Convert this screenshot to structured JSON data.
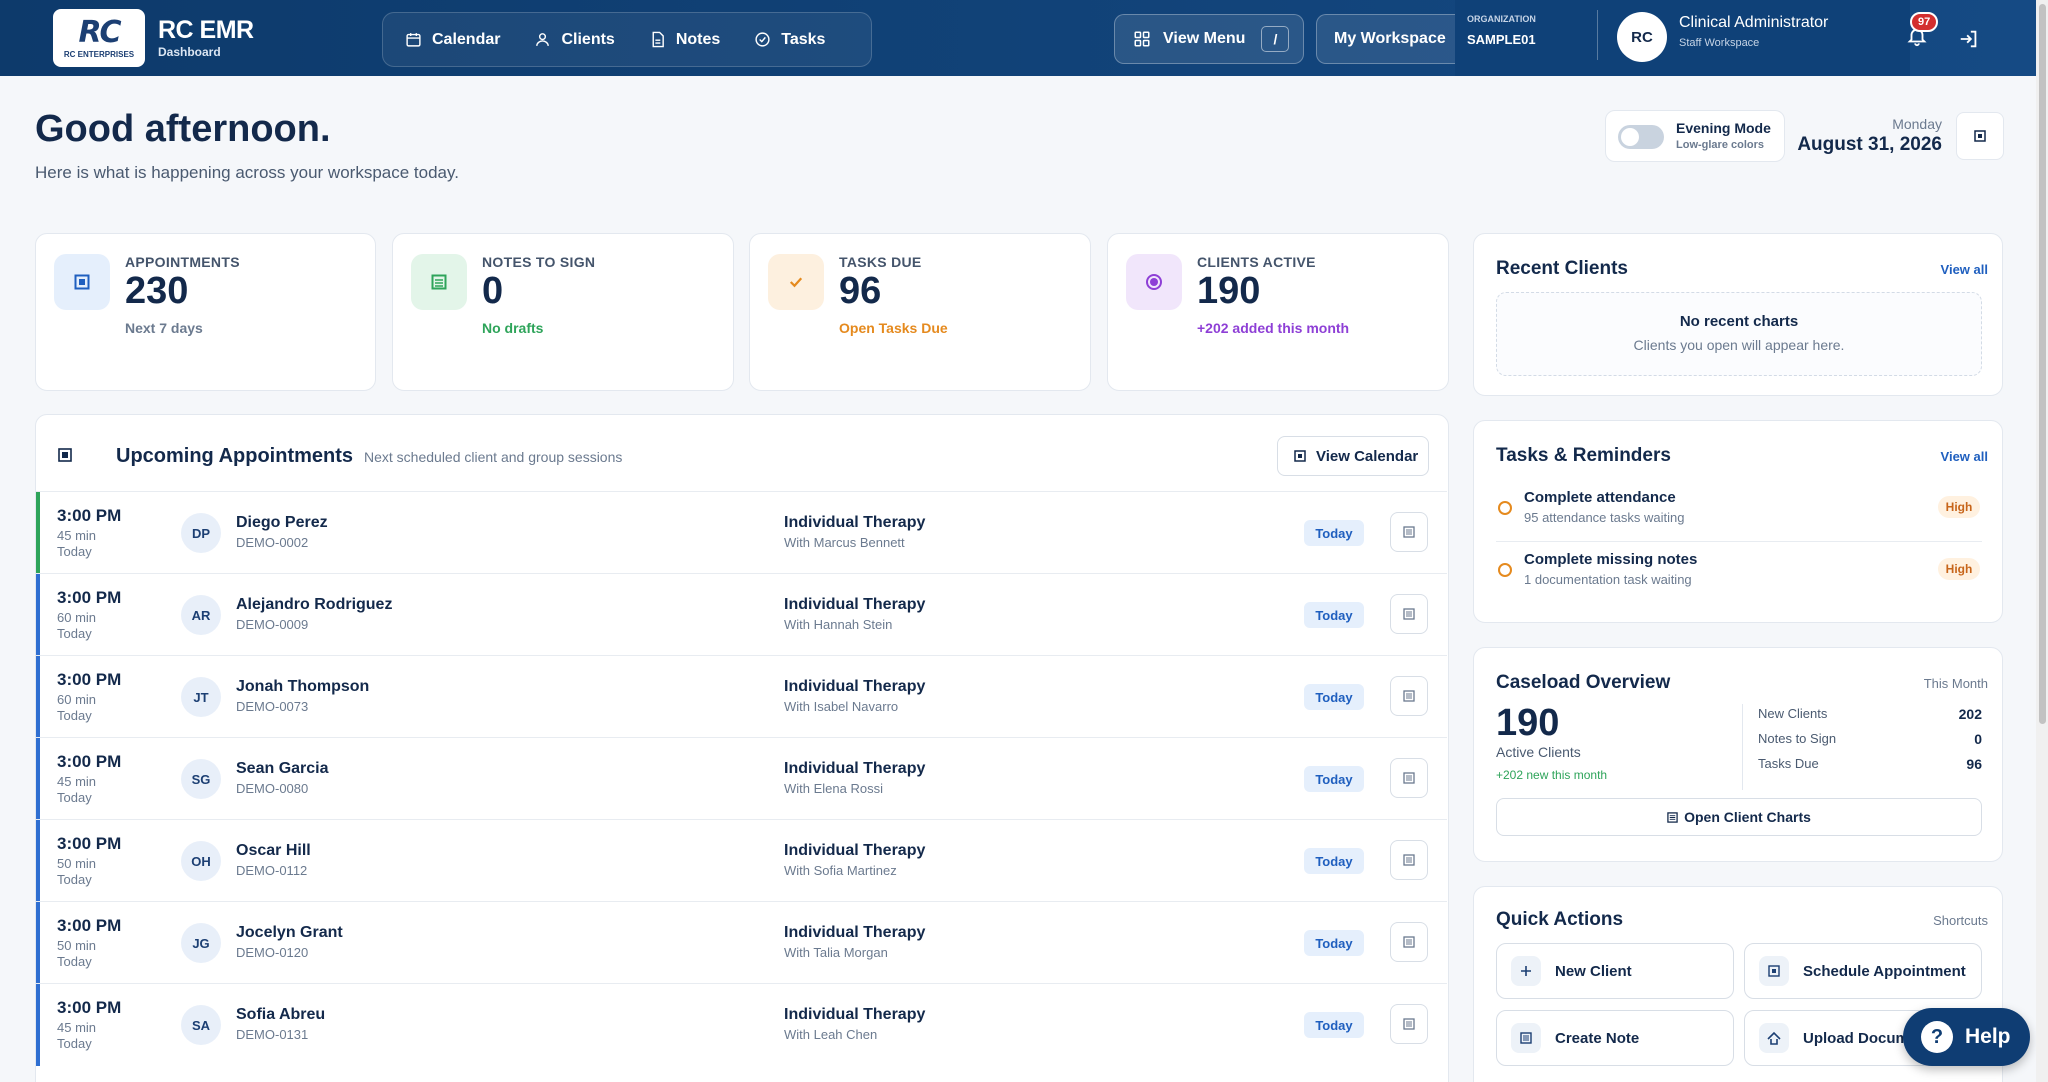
{
  "app": {
    "name": "RC EMR",
    "section": "Dashboard",
    "logo_text": "RC",
    "logo_sub": "RC ENTERPRISES"
  },
  "nav": [
    {
      "label": "Calendar",
      "icon": "calendar-icon"
    },
    {
      "label": "Clients",
      "icon": "user-icon"
    },
    {
      "label": "Notes",
      "icon": "document-icon"
    },
    {
      "label": "Tasks",
      "icon": "check-circle-icon"
    }
  ],
  "header": {
    "view_menu": "View Menu",
    "view_menu_shortcut": "/",
    "workspace": "My Workspace",
    "org_label": "ORGANIZATION",
    "org_value": "SAMPLE01",
    "avatar": "RC",
    "user_name": "Clinical Administrator",
    "user_role": "Staff Workspace",
    "notifications": "97"
  },
  "greeting": {
    "title": "Good afternoon.",
    "subtitle": "Here is what is happening across your workspace today."
  },
  "evening_mode": {
    "title": "Evening Mode",
    "subtitle": "Low-glare colors",
    "enabled": false
  },
  "date": {
    "day": "Monday",
    "full": "August 31, 2026"
  },
  "stats": [
    {
      "label": "APPOINTMENTS",
      "value": "230",
      "sub": "Next 7 days",
      "color": "#1f5fbf",
      "sub_color": "#6b7a8f",
      "bg": "#e5effc"
    },
    {
      "label": "NOTES TO SIGN",
      "value": "0",
      "sub": "No drafts",
      "color": "#2ea45a",
      "sub_color": "#2ea45a",
      "bg": "#e3f5e9"
    },
    {
      "label": "TASKS DUE",
      "value": "96",
      "sub": "Open Tasks Due",
      "color": "#e58a1e",
      "sub_color": "#e58a1e",
      "bg": "#fdf0df"
    },
    {
      "label": "CLIENTS ACTIVE",
      "value": "190",
      "sub": "+202 added this month",
      "color": "#8e3fd6",
      "sub_color": "#8e3fd6",
      "bg": "#f1e6fb"
    }
  ],
  "appointments": {
    "title": "Upcoming Appointments",
    "subtitle": "Next scheduled client and group sessions",
    "view_calendar": "View Calendar",
    "rows": [
      {
        "time": "3:00 PM",
        "duration": "45 min",
        "when": "Today",
        "initials": "DP",
        "name": "Diego Perez",
        "id": "DEMO-0002",
        "service": "Individual Therapy",
        "with": "With Marcus Bennett",
        "badge": "Today"
      },
      {
        "time": "3:00 PM",
        "duration": "60 min",
        "when": "Today",
        "initials": "AR",
        "name": "Alejandro Rodriguez",
        "id": "DEMO-0009",
        "service": "Individual Therapy",
        "with": "With Hannah Stein",
        "badge": "Today"
      },
      {
        "time": "3:00 PM",
        "duration": "60 min",
        "when": "Today",
        "initials": "JT",
        "name": "Jonah Thompson",
        "id": "DEMO-0073",
        "service": "Individual Therapy",
        "with": "With Isabel Navarro",
        "badge": "Today"
      },
      {
        "time": "3:00 PM",
        "duration": "45 min",
        "when": "Today",
        "initials": "SG",
        "name": "Sean Garcia",
        "id": "DEMO-0080",
        "service": "Individual Therapy",
        "with": "With Elena Rossi",
        "badge": "Today"
      },
      {
        "time": "3:00 PM",
        "duration": "50 min",
        "when": "Today",
        "initials": "OH",
        "name": "Oscar Hill",
        "id": "DEMO-0112",
        "service": "Individual Therapy",
        "with": "With Sofia Martinez",
        "badge": "Today"
      },
      {
        "time": "3:00 PM",
        "duration": "50 min",
        "when": "Today",
        "initials": "JG",
        "name": "Jocelyn Grant",
        "id": "DEMO-0120",
        "service": "Individual Therapy",
        "with": "With Talia Morgan",
        "badge": "Today"
      },
      {
        "time": "3:00 PM",
        "duration": "45 min",
        "when": "Today",
        "initials": "SA",
        "name": "Sofia Abreu",
        "id": "DEMO-0131",
        "service": "Individual Therapy",
        "with": "With Leah Chen",
        "badge": "Today"
      }
    ]
  },
  "recent_clients": {
    "title": "Recent Clients",
    "view_all": "View all",
    "empty_title": "No recent charts",
    "empty_sub": "Clients you open will appear here."
  },
  "tasks": {
    "title": "Tasks & Reminders",
    "view_all": "View all",
    "items": [
      {
        "title": "Complete attendance",
        "sub": "95 attendance tasks waiting",
        "priority": "High"
      },
      {
        "title": "Complete missing notes",
        "sub": "1 documentation task waiting",
        "priority": "High"
      }
    ]
  },
  "caseload": {
    "title": "Caseload Overview",
    "period": "This Month",
    "big": "190",
    "label": "Active Clients",
    "new": "+202 new this month",
    "rows": [
      {
        "label": "New Clients",
        "value": "202"
      },
      {
        "label": "Notes to Sign",
        "value": "0"
      },
      {
        "label": "Tasks Due",
        "value": "96"
      }
    ],
    "button": "Open Client Charts"
  },
  "quick_actions": {
    "title": "Quick Actions",
    "hint": "Shortcuts",
    "items": [
      {
        "label": "New Client",
        "icon": "plus-icon"
      },
      {
        "label": "Schedule Appointment",
        "icon": "calendar-icon"
      },
      {
        "label": "Create Note",
        "icon": "note-icon"
      },
      {
        "label": "Upload Docume",
        "icon": "upload-icon"
      }
    ]
  },
  "help": {
    "label": "Help"
  }
}
